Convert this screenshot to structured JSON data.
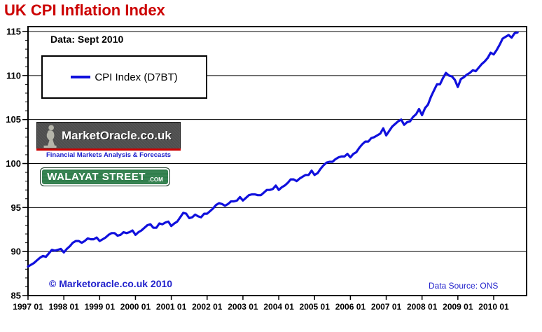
{
  "title": "UK CPI Inflation Index",
  "annotations": {
    "data_date": "Data: Sept 2010",
    "copyright": "© Marketoracle.co.uk 2010",
    "data_source": "Data Source: ONS"
  },
  "legend": {
    "label": "CPI Index (D7BT)"
  },
  "logos": {
    "market_oracle": {
      "name": "MarketOracle.co.uk",
      "tagline": "Financial Markets Analysis & Forecasts"
    },
    "walayat_street": {
      "name": "WALAYAT STREET",
      "suffix": ".COM"
    }
  },
  "colors": {
    "title_red": "#cc0000",
    "line_blue": "#1010dd",
    "link_blue": "#2121cc",
    "source_blue": "#2424cc",
    "banner_bg": "#4e4e4e",
    "banner_red": "#cc0000",
    "sign_green": "#2e7d4a"
  },
  "chart_data": {
    "type": "line",
    "title": "UK CPI Inflation Index",
    "series_name": "CPI Index (D7BT)",
    "frequency": "monthly",
    "start_month": "1997-01",
    "end_month": "2010-09",
    "xlabel": "",
    "ylabel": "",
    "ylim": [
      85,
      116
    ],
    "y_ticks": [
      85,
      90,
      95,
      100,
      105,
      110,
      115
    ],
    "y_minor_tick_step": 1,
    "grid": "horizontal-only",
    "legend_position": "top-left",
    "x_tick_labels": [
      "1997 01",
      "1998 01",
      "1999 01",
      "2000 01",
      "2001 01",
      "2002 01",
      "2003 01",
      "2004 01",
      "2005 01",
      "2006 01",
      "2007 01",
      "2008 01",
      "2009 01",
      "2010 01"
    ],
    "values": [
      88.3,
      88.5,
      88.7,
      89.0,
      89.3,
      89.5,
      89.4,
      89.8,
      90.2,
      90.1,
      90.2,
      90.3,
      89.9,
      90.3,
      90.6,
      91.0,
      91.2,
      91.2,
      91.0,
      91.2,
      91.5,
      91.4,
      91.4,
      91.6,
      91.2,
      91.4,
      91.6,
      91.9,
      92.1,
      92.1,
      91.8,
      91.9,
      92.2,
      92.1,
      92.2,
      92.4,
      91.9,
      92.2,
      92.4,
      92.7,
      93.0,
      93.1,
      92.7,
      92.7,
      93.2,
      93.1,
      93.3,
      93.4,
      92.9,
      93.2,
      93.4,
      93.9,
      94.4,
      94.3,
      93.8,
      93.9,
      94.2,
      94.0,
      93.9,
      94.3,
      94.3,
      94.6,
      94.9,
      95.3,
      95.5,
      95.4,
      95.2,
      95.4,
      95.7,
      95.7,
      95.8,
      96.2,
      95.8,
      96.1,
      96.4,
      96.5,
      96.5,
      96.4,
      96.4,
      96.7,
      97.0,
      97.0,
      97.1,
      97.5,
      97.0,
      97.3,
      97.5,
      97.8,
      98.2,
      98.2,
      98.0,
      98.3,
      98.5,
      98.7,
      98.7,
      99.2,
      98.7,
      98.9,
      99.4,
      99.8,
      100.1,
      100.2,
      100.2,
      100.5,
      100.7,
      100.8,
      100.8,
      101.1,
      100.7,
      101.1,
      101.3,
      101.8,
      102.2,
      102.5,
      102.5,
      102.9,
      103.0,
      103.2,
      103.4,
      104.0,
      103.2,
      103.7,
      104.2,
      104.5,
      104.8,
      105.0,
      104.4,
      104.7,
      104.8,
      105.3,
      105.6,
      106.2,
      105.5,
      106.3,
      106.7,
      107.6,
      108.3,
      109.0,
      109.0,
      109.7,
      110.3,
      110.0,
      109.9,
      109.5,
      108.7,
      109.6,
      109.8,
      110.1,
      110.3,
      110.6,
      110.5,
      110.9,
      111.3,
      111.6,
      112.0,
      112.6,
      112.4,
      112.9,
      113.5,
      114.2,
      114.4,
      114.6,
      114.3,
      114.8,
      114.9
    ]
  }
}
